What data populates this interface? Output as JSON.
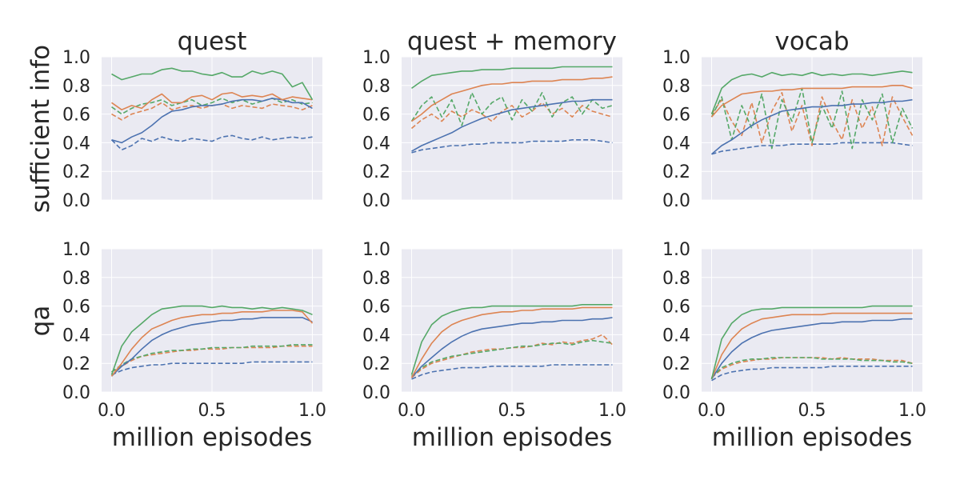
{
  "chart_data": {
    "type": "line",
    "x_label": "million episodes",
    "columns": [
      "quest",
      "quest + memory",
      "vocab"
    ],
    "rows": [
      "sufficient info",
      "qa"
    ],
    "y_ticks": [
      "0.0",
      "0.2",
      "0.4",
      "0.6",
      "0.8",
      "1.0"
    ],
    "x_ticks": [
      "0.0",
      "0.5",
      "1.0"
    ],
    "xlim": [
      -0.05,
      1.05
    ],
    "ylim": [
      0.0,
      1.0
    ],
    "grid": true,
    "style": {
      "background": "#eaeaf2",
      "grid_color": "#ffffff",
      "colors": [
        "#4c72b0",
        "#dd8452",
        "#55a868"
      ]
    },
    "series_styles": [
      {
        "color_index": 0,
        "dash": false
      },
      {
        "color_index": 1,
        "dash": false
      },
      {
        "color_index": 2,
        "dash": false
      },
      {
        "color_index": 0,
        "dash": true
      },
      {
        "color_index": 1,
        "dash": true
      },
      {
        "color_index": 2,
        "dash": true
      }
    ],
    "panels": [
      {
        "title": "quest",
        "row": 0,
        "col": 0,
        "x": [
          0,
          0.05,
          0.1,
          0.15,
          0.2,
          0.25,
          0.3,
          0.35,
          0.4,
          0.45,
          0.5,
          0.55,
          0.6,
          0.65,
          0.7,
          0.75,
          0.8,
          0.85,
          0.9,
          0.95,
          1.0
        ],
        "series": [
          [
            0.42,
            0.4,
            0.44,
            0.47,
            0.52,
            0.58,
            0.62,
            0.63,
            0.65,
            0.66,
            0.66,
            0.67,
            0.69,
            0.7,
            0.7,
            0.69,
            0.71,
            0.7,
            0.68,
            0.68,
            0.64
          ],
          [
            0.68,
            0.63,
            0.66,
            0.64,
            0.7,
            0.74,
            0.68,
            0.68,
            0.72,
            0.73,
            0.7,
            0.74,
            0.75,
            0.72,
            0.73,
            0.72,
            0.74,
            0.7,
            0.72,
            0.71,
            0.7
          ],
          [
            0.88,
            0.84,
            0.86,
            0.88,
            0.88,
            0.91,
            0.92,
            0.9,
            0.9,
            0.88,
            0.87,
            0.89,
            0.86,
            0.86,
            0.9,
            0.88,
            0.9,
            0.88,
            0.79,
            0.82,
            0.7
          ],
          [
            0.42,
            0.35,
            0.38,
            0.43,
            0.41,
            0.44,
            0.42,
            0.41,
            0.43,
            0.42,
            0.41,
            0.44,
            0.45,
            0.43,
            0.42,
            0.44,
            0.42,
            0.43,
            0.44,
            0.43,
            0.44
          ],
          [
            0.6,
            0.56,
            0.6,
            0.62,
            0.64,
            0.68,
            0.63,
            0.65,
            0.66,
            0.64,
            0.66,
            0.67,
            0.64,
            0.66,
            0.65,
            0.64,
            0.67,
            0.66,
            0.65,
            0.63,
            0.66
          ],
          [
            0.65,
            0.6,
            0.64,
            0.67,
            0.68,
            0.7,
            0.66,
            0.68,
            0.7,
            0.66,
            0.68,
            0.71,
            0.68,
            0.7,
            0.67,
            0.69,
            0.71,
            0.68,
            0.7,
            0.67,
            0.68
          ]
        ]
      },
      {
        "title": "quest + memory",
        "row": 0,
        "col": 1,
        "x": [
          0,
          0.05,
          0.1,
          0.15,
          0.2,
          0.25,
          0.3,
          0.35,
          0.4,
          0.45,
          0.5,
          0.55,
          0.6,
          0.65,
          0.7,
          0.75,
          0.8,
          0.85,
          0.9,
          0.95,
          1.0
        ],
        "series": [
          [
            0.34,
            0.38,
            0.41,
            0.44,
            0.47,
            0.51,
            0.54,
            0.57,
            0.59,
            0.61,
            0.63,
            0.64,
            0.65,
            0.66,
            0.67,
            0.68,
            0.69,
            0.69,
            0.7,
            0.7,
            0.7
          ],
          [
            0.55,
            0.6,
            0.66,
            0.7,
            0.74,
            0.76,
            0.78,
            0.8,
            0.81,
            0.81,
            0.82,
            0.82,
            0.83,
            0.83,
            0.83,
            0.84,
            0.84,
            0.84,
            0.85,
            0.85,
            0.86
          ],
          [
            0.78,
            0.83,
            0.87,
            0.88,
            0.89,
            0.9,
            0.9,
            0.91,
            0.91,
            0.91,
            0.92,
            0.92,
            0.92,
            0.92,
            0.92,
            0.93,
            0.93,
            0.93,
            0.93,
            0.93,
            0.93
          ],
          [
            0.33,
            0.35,
            0.36,
            0.37,
            0.38,
            0.38,
            0.39,
            0.39,
            0.4,
            0.4,
            0.4,
            0.4,
            0.41,
            0.41,
            0.41,
            0.41,
            0.42,
            0.42,
            0.42,
            0.41,
            0.4
          ],
          [
            0.5,
            0.56,
            0.6,
            0.55,
            0.62,
            0.58,
            0.63,
            0.6,
            0.55,
            0.62,
            0.66,
            0.58,
            0.62,
            0.68,
            0.6,
            0.64,
            0.58,
            0.66,
            0.62,
            0.6,
            0.58
          ],
          [
            0.55,
            0.66,
            0.72,
            0.58,
            0.7,
            0.52,
            0.75,
            0.6,
            0.68,
            0.72,
            0.56,
            0.7,
            0.62,
            0.75,
            0.58,
            0.68,
            0.72,
            0.6,
            0.7,
            0.64,
            0.66
          ]
        ]
      },
      {
        "title": "vocab",
        "row": 0,
        "col": 2,
        "x": [
          0,
          0.05,
          0.1,
          0.15,
          0.2,
          0.25,
          0.3,
          0.35,
          0.4,
          0.45,
          0.5,
          0.55,
          0.6,
          0.65,
          0.7,
          0.75,
          0.8,
          0.85,
          0.9,
          0.95,
          1.0
        ],
        "series": [
          [
            0.32,
            0.38,
            0.42,
            0.47,
            0.52,
            0.56,
            0.59,
            0.62,
            0.63,
            0.64,
            0.65,
            0.65,
            0.66,
            0.66,
            0.67,
            0.67,
            0.68,
            0.68,
            0.69,
            0.69,
            0.7
          ],
          [
            0.58,
            0.66,
            0.7,
            0.74,
            0.75,
            0.76,
            0.76,
            0.77,
            0.77,
            0.78,
            0.78,
            0.78,
            0.78,
            0.78,
            0.79,
            0.79,
            0.79,
            0.79,
            0.8,
            0.8,
            0.78
          ],
          [
            0.6,
            0.78,
            0.84,
            0.87,
            0.88,
            0.86,
            0.89,
            0.87,
            0.88,
            0.87,
            0.89,
            0.87,
            0.88,
            0.87,
            0.88,
            0.88,
            0.87,
            0.88,
            0.89,
            0.9,
            0.89
          ],
          [
            0.32,
            0.34,
            0.35,
            0.36,
            0.37,
            0.38,
            0.38,
            0.38,
            0.39,
            0.39,
            0.39,
            0.39,
            0.39,
            0.4,
            0.4,
            0.4,
            0.4,
            0.4,
            0.4,
            0.39,
            0.38
          ],
          [
            0.6,
            0.7,
            0.55,
            0.45,
            0.68,
            0.4,
            0.62,
            0.75,
            0.48,
            0.66,
            0.38,
            0.72,
            0.55,
            0.42,
            0.7,
            0.5,
            0.65,
            0.38,
            0.72,
            0.58,
            0.45
          ],
          [
            0.58,
            0.72,
            0.42,
            0.66,
            0.5,
            0.74,
            0.36,
            0.7,
            0.55,
            0.78,
            0.4,
            0.66,
            0.5,
            0.76,
            0.36,
            0.7,
            0.56,
            0.74,
            0.4,
            0.64,
            0.5
          ]
        ]
      },
      {
        "title": "",
        "row": 1,
        "col": 0,
        "x": [
          0,
          0.05,
          0.1,
          0.15,
          0.2,
          0.25,
          0.3,
          0.35,
          0.4,
          0.45,
          0.5,
          0.55,
          0.6,
          0.65,
          0.7,
          0.75,
          0.8,
          0.85,
          0.9,
          0.95,
          1.0
        ],
        "series": [
          [
            0.11,
            0.18,
            0.23,
            0.3,
            0.36,
            0.4,
            0.43,
            0.45,
            0.47,
            0.48,
            0.49,
            0.5,
            0.5,
            0.51,
            0.51,
            0.52,
            0.52,
            0.52,
            0.52,
            0.52,
            0.49
          ],
          [
            0.11,
            0.2,
            0.3,
            0.38,
            0.44,
            0.47,
            0.5,
            0.52,
            0.53,
            0.54,
            0.54,
            0.55,
            0.55,
            0.56,
            0.56,
            0.56,
            0.57,
            0.57,
            0.57,
            0.56,
            0.48
          ],
          [
            0.12,
            0.32,
            0.42,
            0.48,
            0.54,
            0.58,
            0.59,
            0.6,
            0.6,
            0.6,
            0.59,
            0.6,
            0.59,
            0.59,
            0.58,
            0.59,
            0.58,
            0.59,
            0.58,
            0.57,
            0.54
          ],
          [
            0.12,
            0.15,
            0.17,
            0.18,
            0.19,
            0.19,
            0.2,
            0.2,
            0.2,
            0.2,
            0.2,
            0.2,
            0.2,
            0.2,
            0.21,
            0.21,
            0.21,
            0.21,
            0.21,
            0.21,
            0.21
          ],
          [
            0.14,
            0.18,
            0.22,
            0.25,
            0.26,
            0.27,
            0.28,
            0.29,
            0.29,
            0.3,
            0.3,
            0.3,
            0.31,
            0.31,
            0.31,
            0.31,
            0.31,
            0.32,
            0.32,
            0.32,
            0.32
          ],
          [
            0.14,
            0.19,
            0.23,
            0.25,
            0.27,
            0.28,
            0.29,
            0.29,
            0.3,
            0.3,
            0.31,
            0.31,
            0.31,
            0.31,
            0.32,
            0.32,
            0.32,
            0.32,
            0.33,
            0.33,
            0.33
          ]
        ]
      },
      {
        "title": "",
        "row": 1,
        "col": 1,
        "x": [
          0,
          0.05,
          0.1,
          0.15,
          0.2,
          0.25,
          0.3,
          0.35,
          0.4,
          0.45,
          0.5,
          0.55,
          0.6,
          0.65,
          0.7,
          0.75,
          0.8,
          0.85,
          0.9,
          0.95,
          1.0
        ],
        "series": [
          [
            0.1,
            0.18,
            0.24,
            0.3,
            0.35,
            0.39,
            0.42,
            0.44,
            0.45,
            0.46,
            0.47,
            0.48,
            0.48,
            0.49,
            0.49,
            0.5,
            0.5,
            0.5,
            0.51,
            0.51,
            0.52
          ],
          [
            0.1,
            0.23,
            0.34,
            0.42,
            0.47,
            0.5,
            0.52,
            0.54,
            0.55,
            0.56,
            0.56,
            0.57,
            0.57,
            0.58,
            0.58,
            0.58,
            0.58,
            0.59,
            0.59,
            0.59,
            0.59
          ],
          [
            0.12,
            0.35,
            0.47,
            0.53,
            0.56,
            0.58,
            0.59,
            0.59,
            0.6,
            0.6,
            0.6,
            0.6,
            0.6,
            0.6,
            0.6,
            0.6,
            0.6,
            0.61,
            0.61,
            0.61,
            0.61
          ],
          [
            0.09,
            0.12,
            0.14,
            0.15,
            0.16,
            0.17,
            0.17,
            0.17,
            0.18,
            0.18,
            0.18,
            0.18,
            0.18,
            0.18,
            0.19,
            0.19,
            0.19,
            0.19,
            0.19,
            0.19,
            0.19
          ],
          [
            0.1,
            0.16,
            0.2,
            0.22,
            0.24,
            0.26,
            0.28,
            0.29,
            0.3,
            0.3,
            0.31,
            0.31,
            0.32,
            0.34,
            0.33,
            0.35,
            0.34,
            0.36,
            0.37,
            0.4,
            0.33
          ],
          [
            0.11,
            0.17,
            0.21,
            0.23,
            0.25,
            0.26,
            0.27,
            0.28,
            0.29,
            0.3,
            0.31,
            0.32,
            0.32,
            0.33,
            0.34,
            0.34,
            0.33,
            0.35,
            0.36,
            0.35,
            0.34
          ]
        ]
      },
      {
        "title": "",
        "row": 1,
        "col": 2,
        "x": [
          0,
          0.05,
          0.1,
          0.15,
          0.2,
          0.25,
          0.3,
          0.35,
          0.4,
          0.45,
          0.5,
          0.55,
          0.6,
          0.65,
          0.7,
          0.75,
          0.8,
          0.85,
          0.9,
          0.95,
          1.0
        ],
        "series": [
          [
            0.09,
            0.2,
            0.28,
            0.34,
            0.38,
            0.41,
            0.43,
            0.44,
            0.45,
            0.46,
            0.47,
            0.48,
            0.48,
            0.49,
            0.49,
            0.49,
            0.5,
            0.5,
            0.5,
            0.51,
            0.51
          ],
          [
            0.09,
            0.26,
            0.37,
            0.44,
            0.48,
            0.51,
            0.52,
            0.53,
            0.54,
            0.54,
            0.54,
            0.54,
            0.55,
            0.55,
            0.55,
            0.55,
            0.55,
            0.55,
            0.55,
            0.55,
            0.55
          ],
          [
            0.09,
            0.37,
            0.48,
            0.54,
            0.57,
            0.58,
            0.58,
            0.59,
            0.59,
            0.59,
            0.59,
            0.59,
            0.59,
            0.59,
            0.59,
            0.59,
            0.6,
            0.6,
            0.6,
            0.6,
            0.6
          ],
          [
            0.08,
            0.12,
            0.14,
            0.15,
            0.16,
            0.16,
            0.17,
            0.17,
            0.17,
            0.17,
            0.17,
            0.17,
            0.18,
            0.18,
            0.18,
            0.18,
            0.18,
            0.18,
            0.18,
            0.18,
            0.18
          ],
          [
            0.1,
            0.16,
            0.19,
            0.21,
            0.22,
            0.23,
            0.23,
            0.24,
            0.24,
            0.24,
            0.24,
            0.24,
            0.23,
            0.24,
            0.23,
            0.23,
            0.23,
            0.22,
            0.22,
            0.22,
            0.2
          ],
          [
            0.1,
            0.17,
            0.2,
            0.22,
            0.23,
            0.23,
            0.24,
            0.24,
            0.24,
            0.24,
            0.24,
            0.23,
            0.23,
            0.23,
            0.23,
            0.22,
            0.22,
            0.22,
            0.21,
            0.21,
            0.2
          ]
        ]
      }
    ]
  }
}
